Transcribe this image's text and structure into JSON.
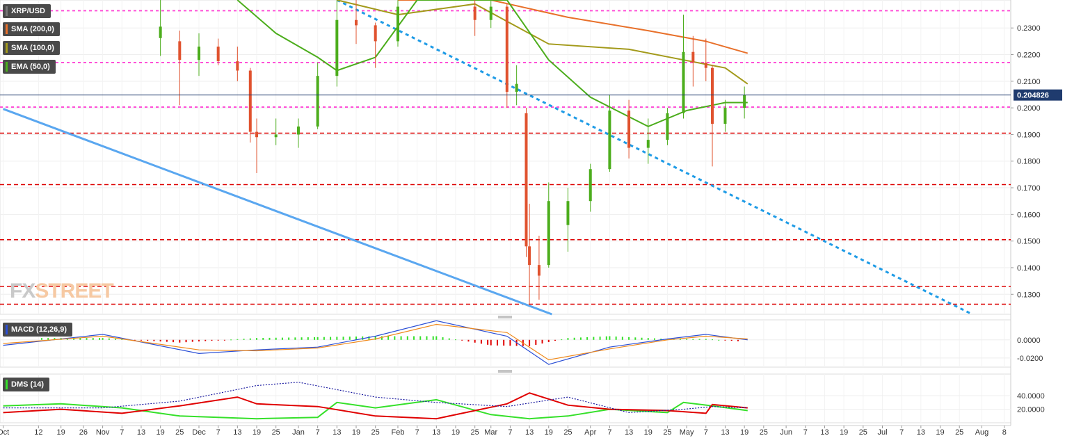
{
  "chart_data": [
    {
      "type": "candlestick",
      "title": "XRP/USD",
      "indicators": [
        {
          "name": "SMA (200,0)",
          "color": "#e8702a"
        },
        {
          "name": "SMA (100,0)",
          "color": "#a39a1b"
        },
        {
          "name": "EMA (50,0)",
          "color": "#4cad1c"
        }
      ],
      "current_price": "0.204826",
      "ylim": [
        0.1225,
        0.2405
      ],
      "y_ticks": [
        "0.2300",
        "0.2200",
        "0.2100",
        "0.2000",
        "0.1900",
        "0.1800",
        "0.1700",
        "0.1600",
        "0.1500",
        "0.1400",
        "0.1300"
      ],
      "horizontal_levels": [
        {
          "value": 0.2365,
          "color": "#ff4fd8",
          "style": "dotted"
        },
        {
          "value": 0.217,
          "color": "#ff4fd8",
          "style": "dotted"
        },
        {
          "value": 0.2003,
          "color": "#ff4fd8",
          "style": "dotted"
        },
        {
          "value": 0.1905,
          "color": "#dd0000",
          "style": "dashed"
        },
        {
          "value": 0.1712,
          "color": "#dd0000",
          "style": "dashed"
        },
        {
          "value": 0.1505,
          "color": "#dd0000",
          "style": "dashed"
        },
        {
          "value": 0.133,
          "color": "#dd0000",
          "style": "dashed"
        },
        {
          "value": 0.1263,
          "color": "#dd0000",
          "style": "dashed"
        }
      ],
      "trendlines": [
        {
          "style": "solid",
          "color": "#5aa7f0",
          "from": {
            "date": "2019-10-01",
            "price": 0.1996
          },
          "to": {
            "date": "2020-03-20",
            "price": 0.1225
          }
        },
        {
          "style": "dotted",
          "color": "#1e9be6",
          "from": {
            "date": "2020-01-13",
            "price": 0.2405
          },
          "to": {
            "date": "2020-07-29",
            "price": 0.1225
          }
        }
      ],
      "candles": [
        {
          "date": "2019-11-19",
          "open": 0.2262,
          "high": 0.2405,
          "low": 0.2195,
          "close": 0.2305
        },
        {
          "date": "2019-11-25",
          "open": 0.225,
          "high": 0.229,
          "low": 0.201,
          "close": 0.218
        },
        {
          "date": "2019-12-01",
          "open": 0.218,
          "high": 0.228,
          "low": 0.212,
          "close": 0.223
        },
        {
          "date": "2019-12-07",
          "open": 0.223,
          "high": 0.226,
          "low": 0.216,
          "close": 0.2175
        },
        {
          "date": "2019-12-13",
          "open": 0.2175,
          "high": 0.223,
          "low": 0.21,
          "close": 0.214
        },
        {
          "date": "2019-12-17",
          "open": 0.214,
          "high": 0.215,
          "low": 0.187,
          "close": 0.191
        },
        {
          "date": "2019-12-19",
          "open": 0.191,
          "high": 0.196,
          "low": 0.1755,
          "close": 0.189
        },
        {
          "date": "2019-12-25",
          "open": 0.189,
          "high": 0.196,
          "low": 0.186,
          "close": 0.19
        },
        {
          "date": "2020-01-01",
          "open": 0.19,
          "high": 0.196,
          "low": 0.185,
          "close": 0.193
        },
        {
          "date": "2020-01-07",
          "open": 0.193,
          "high": 0.217,
          "low": 0.192,
          "close": 0.212
        },
        {
          "date": "2020-01-13",
          "open": 0.212,
          "high": 0.2405,
          "low": 0.208,
          "close": 0.233
        },
        {
          "date": "2020-01-19",
          "open": 0.233,
          "high": 0.2405,
          "low": 0.224,
          "close": 0.231
        },
        {
          "date": "2020-01-25",
          "open": 0.231,
          "high": 0.232,
          "low": 0.215,
          "close": 0.225
        },
        {
          "date": "2020-02-01",
          "open": 0.225,
          "high": 0.2405,
          "low": 0.223,
          "close": 0.238
        },
        {
          "date": "2020-02-25",
          "open": 0.238,
          "high": 0.2405,
          "low": 0.227,
          "close": 0.233
        },
        {
          "date": "2020-03-01",
          "open": 0.233,
          "high": 0.2405,
          "low": 0.23,
          "close": 0.238
        },
        {
          "date": "2020-03-06",
          "open": 0.238,
          "high": 0.239,
          "low": 0.2,
          "close": 0.206
        },
        {
          "date": "2020-03-09",
          "open": 0.206,
          "high": 0.216,
          "low": 0.201,
          "close": 0.209
        },
        {
          "date": "2020-03-12",
          "open": 0.198,
          "high": 0.2,
          "low": 0.144,
          "close": 0.148
        },
        {
          "date": "2020-03-13",
          "open": 0.148,
          "high": 0.164,
          "low": 0.126,
          "close": 0.141
        },
        {
          "date": "2020-03-16",
          "open": 0.141,
          "high": 0.152,
          "low": 0.128,
          "close": 0.137
        },
        {
          "date": "2020-03-19",
          "open": 0.141,
          "high": 0.172,
          "low": 0.14,
          "close": 0.165
        },
        {
          "date": "2020-03-25",
          "open": 0.156,
          "high": 0.17,
          "low": 0.146,
          "close": 0.165
        },
        {
          "date": "2020-04-01",
          "open": 0.165,
          "high": 0.179,
          "low": 0.161,
          "close": 0.177
        },
        {
          "date": "2020-04-07",
          "open": 0.177,
          "high": 0.205,
          "low": 0.176,
          "close": 0.199
        },
        {
          "date": "2020-04-13",
          "open": 0.199,
          "high": 0.203,
          "low": 0.181,
          "close": 0.185
        },
        {
          "date": "2020-04-19",
          "open": 0.185,
          "high": 0.196,
          "low": 0.179,
          "close": 0.188
        },
        {
          "date": "2020-04-25",
          "open": 0.188,
          "high": 0.2,
          "low": 0.186,
          "close": 0.198
        },
        {
          "date": "2020-04-30",
          "open": 0.198,
          "high": 0.235,
          "low": 0.196,
          "close": 0.221
        },
        {
          "date": "2020-05-03",
          "open": 0.221,
          "high": 0.227,
          "low": 0.208,
          "close": 0.217
        },
        {
          "date": "2020-05-07",
          "open": 0.217,
          "high": 0.226,
          "low": 0.21,
          "close": 0.215
        },
        {
          "date": "2020-05-09",
          "open": 0.215,
          "high": 0.216,
          "low": 0.178,
          "close": 0.194
        },
        {
          "date": "2020-05-13",
          "open": 0.194,
          "high": 0.203,
          "low": 0.191,
          "close": 0.2
        },
        {
          "date": "2020-05-19",
          "open": 0.2,
          "high": 0.208,
          "low": 0.196,
          "close": 0.2048
        }
      ],
      "moving_averages": [
        {
          "name": "SMA (200,0)",
          "x": [
            "2020-02-01",
            "2020-03-01",
            "2020-03-25",
            "2020-04-19",
            "2020-05-07",
            "2020-05-20"
          ],
          "y": [
            0.2405,
            0.2405,
            0.234,
            0.229,
            0.225,
            0.2205
          ]
        },
        {
          "name": "SMA (100,0)",
          "x": [
            "2020-01-13",
            "2020-02-01",
            "2020-02-25",
            "2020-03-19",
            "2020-04-13",
            "2020-04-30",
            "2020-05-13",
            "2020-05-20"
          ],
          "y": [
            0.2405,
            0.235,
            0.239,
            0.224,
            0.222,
            0.218,
            0.215,
            0.209
          ]
        },
        {
          "name": "EMA (50,0)",
          "x": [
            "2019-12-13",
            "2019-12-25",
            "2020-01-07",
            "2020-01-13",
            "2020-01-25",
            "2020-02-07",
            "2020-03-06",
            "2020-03-19",
            "2020-04-01",
            "2020-04-19",
            "2020-05-01",
            "2020-05-13",
            "2020-05-20"
          ],
          "y": [
            0.2405,
            0.228,
            0.219,
            0.214,
            0.219,
            0.2405,
            0.2405,
            0.218,
            0.204,
            0.193,
            0.199,
            0.202,
            0.202
          ]
        }
      ]
    },
    {
      "type": "histogram+line",
      "title": "MACD (12,26,9)",
      "ylim": [
        -0.03,
        0.022
      ],
      "y_ticks": [
        "0.0000",
        "-0.0200"
      ],
      "series": [
        {
          "name": "MACD",
          "color": "#2b4fd6",
          "x": [
            "2019-10-01",
            "2019-11-01",
            "2019-12-01",
            "2019-12-19",
            "2020-01-07",
            "2020-01-25",
            "2020-02-13",
            "2020-03-06",
            "2020-03-19",
            "2020-04-07",
            "2020-04-25",
            "2020-05-07",
            "2020-05-20"
          ],
          "y": [
            -0.006,
            0.006,
            -0.015,
            -0.011,
            -0.008,
            0.004,
            0.021,
            0.004,
            -0.027,
            -0.008,
            0.001,
            0.006,
            0.0
          ]
        },
        {
          "name": "Signal",
          "color": "#f08a1c",
          "x": [
            "2019-10-01",
            "2019-11-01",
            "2019-12-01",
            "2019-12-19",
            "2020-01-07",
            "2020-01-25",
            "2020-02-13",
            "2020-03-06",
            "2020-03-19",
            "2020-04-07",
            "2020-04-25",
            "2020-05-07",
            "2020-05-20"
          ],
          "y": [
            -0.004,
            0.004,
            -0.011,
            -0.012,
            -0.009,
            0.001,
            0.017,
            0.008,
            -0.022,
            -0.01,
            0.0,
            0.004,
            0.001
          ]
        }
      ],
      "histogram": {
        "x": [
          "2019-10-13",
          "2019-11-01",
          "2019-11-25",
          "2019-12-19",
          "2020-01-07",
          "2020-01-25",
          "2020-02-13",
          "2020-03-01",
          "2020-03-13",
          "2020-03-25",
          "2020-04-07",
          "2020-04-25",
          "2020-05-07",
          "2020-05-19"
        ],
        "y": [
          0.002,
          0.002,
          -0.003,
          0.002,
          0.003,
          0.004,
          0.004,
          -0.006,
          -0.007,
          0.002,
          0.004,
          0.001,
          0.001,
          -0.002
        ]
      }
    },
    {
      "type": "line",
      "title": "DMS (14)",
      "ylim": [
        0,
        72
      ],
      "y_ticks": [
        "40.0000",
        "20.0000"
      ],
      "series": [
        {
          "name": "+DI",
          "color": "#35e02a",
          "x": [
            "2019-10-01",
            "2019-10-19",
            "2019-11-07",
            "2019-11-25",
            "2019-12-19",
            "2020-01-07",
            "2020-01-13",
            "2020-01-25",
            "2020-02-13",
            "2020-03-01",
            "2020-03-13",
            "2020-03-25",
            "2020-04-07",
            "2020-04-25",
            "2020-04-30",
            "2020-05-09",
            "2020-05-20"
          ],
          "y": [
            25,
            28,
            22,
            10,
            6,
            8,
            30,
            22,
            34,
            12,
            6,
            10,
            20,
            15,
            30,
            25,
            18
          ]
        },
        {
          "name": "-DI",
          "color": "#e00000",
          "x": [
            "2019-10-01",
            "2019-10-19",
            "2019-11-07",
            "2019-11-25",
            "2019-12-13",
            "2019-12-19",
            "2020-01-07",
            "2020-01-25",
            "2020-02-13",
            "2020-03-06",
            "2020-03-13",
            "2020-03-25",
            "2020-04-07",
            "2020-04-25",
            "2020-05-07",
            "2020-05-09",
            "2020-05-20"
          ],
          "y": [
            15,
            20,
            14,
            25,
            38,
            28,
            24,
            10,
            6,
            28,
            44,
            26,
            20,
            18,
            14,
            27,
            22
          ]
        },
        {
          "name": "ADX",
          "color": "#1a1aa0",
          "style": "dotted",
          "x": [
            "2019-10-01",
            "2019-11-01",
            "2019-11-25",
            "2019-12-19",
            "2020-01-01",
            "2020-01-25",
            "2020-02-13",
            "2020-03-06",
            "2020-03-25",
            "2020-04-13",
            "2020-04-30",
            "2020-05-09",
            "2020-05-20"
          ],
          "y": [
            22,
            22,
            32,
            55,
            60,
            38,
            30,
            24,
            38,
            15,
            20,
            24,
            22
          ]
        }
      ]
    }
  ],
  "x_axis": {
    "start": "2019-09-30",
    "end": "2020-08-10",
    "ticks": [
      {
        "label": "Oct",
        "date": "2019-10-01"
      },
      {
        "label": "12",
        "date": "2019-10-12"
      },
      {
        "label": "19",
        "date": "2019-10-19"
      },
      {
        "label": "26",
        "date": "2019-10-26"
      },
      {
        "label": "Nov",
        "date": "2019-11-01"
      },
      {
        "label": "7",
        "date": "2019-11-07"
      },
      {
        "label": "13",
        "date": "2019-11-13"
      },
      {
        "label": "19",
        "date": "2019-11-19"
      },
      {
        "label": "25",
        "date": "2019-11-25"
      },
      {
        "label": "Dec",
        "date": "2019-12-01"
      },
      {
        "label": "7",
        "date": "2019-12-07"
      },
      {
        "label": "13",
        "date": "2019-12-13"
      },
      {
        "label": "19",
        "date": "2019-12-19"
      },
      {
        "label": "25",
        "date": "2019-12-25"
      },
      {
        "label": "Jan",
        "date": "2020-01-01"
      },
      {
        "label": "7",
        "date": "2020-01-07"
      },
      {
        "label": "13",
        "date": "2020-01-13"
      },
      {
        "label": "19",
        "date": "2020-01-19"
      },
      {
        "label": "25",
        "date": "2020-01-25"
      },
      {
        "label": "Feb",
        "date": "2020-02-01"
      },
      {
        "label": "7",
        "date": "2020-02-07"
      },
      {
        "label": "13",
        "date": "2020-02-13"
      },
      {
        "label": "19",
        "date": "2020-02-19"
      },
      {
        "label": "25",
        "date": "2020-02-25"
      },
      {
        "label": "Mar",
        "date": "2020-03-01"
      },
      {
        "label": "7",
        "date": "2020-03-07"
      },
      {
        "label": "13",
        "date": "2020-03-13"
      },
      {
        "label": "19",
        "date": "2020-03-19"
      },
      {
        "label": "25",
        "date": "2020-03-25"
      },
      {
        "label": "Apr",
        "date": "2020-04-01"
      },
      {
        "label": "7",
        "date": "2020-04-07"
      },
      {
        "label": "13",
        "date": "2020-04-13"
      },
      {
        "label": "19",
        "date": "2020-04-19"
      },
      {
        "label": "25",
        "date": "2020-04-25"
      },
      {
        "label": "May",
        "date": "2020-05-01"
      },
      {
        "label": "7",
        "date": "2020-05-07"
      },
      {
        "label": "13",
        "date": "2020-05-13"
      },
      {
        "label": "19",
        "date": "2020-05-19"
      },
      {
        "label": "25",
        "date": "2020-05-25"
      },
      {
        "label": "Jun",
        "date": "2020-06-01"
      },
      {
        "label": "7",
        "date": "2020-06-07"
      },
      {
        "label": "13",
        "date": "2020-06-13"
      },
      {
        "label": "19",
        "date": "2020-06-19"
      },
      {
        "label": "25",
        "date": "2020-06-25"
      },
      {
        "label": "Jul",
        "date": "2020-07-01"
      },
      {
        "label": "7",
        "date": "2020-07-07"
      },
      {
        "label": "13",
        "date": "2020-07-13"
      },
      {
        "label": "19",
        "date": "2020-07-19"
      },
      {
        "label": "25",
        "date": "2020-07-25"
      },
      {
        "label": "Aug",
        "date": "2020-08-01"
      },
      {
        "label": "8",
        "date": "2020-08-08"
      }
    ]
  },
  "watermark": {
    "part1": "FX",
    "part2": "STREET"
  },
  "colors": {
    "candle_up": "#4cad1c",
    "candle_down": "#e0522e",
    "grid": "#eeeeee",
    "price_label_bg": "#1f3b6e"
  }
}
